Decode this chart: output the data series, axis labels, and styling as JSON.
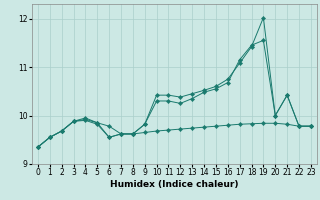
{
  "xlabel": "Humidex (Indice chaleur)",
  "bg_color": "#cce8e4",
  "grid_color": "#aacfcb",
  "line_color": "#1a7a6e",
  "xlim": [
    -0.5,
    23.5
  ],
  "ylim": [
    9.0,
    12.3
  ],
  "yticks": [
    9,
    10,
    11,
    12
  ],
  "xticks": [
    0,
    1,
    2,
    3,
    4,
    5,
    6,
    7,
    8,
    9,
    10,
    11,
    12,
    13,
    14,
    15,
    16,
    17,
    18,
    19,
    20,
    21,
    22,
    23
  ],
  "series": [
    [
      9.35,
      9.55,
      9.68,
      9.88,
      9.9,
      9.82,
      9.55,
      9.62,
      9.62,
      9.82,
      10.42,
      10.42,
      10.38,
      10.45,
      10.52,
      10.6,
      10.75,
      11.08,
      11.42,
      12.02,
      10.0,
      10.42,
      9.78,
      9.78
    ],
    [
      9.35,
      9.55,
      9.68,
      9.88,
      9.95,
      9.85,
      9.55,
      9.62,
      9.62,
      9.82,
      10.3,
      10.3,
      10.25,
      10.35,
      10.48,
      10.55,
      10.68,
      11.15,
      11.45,
      11.55,
      10.0,
      10.42,
      9.78,
      9.78
    ],
    [
      9.35,
      9.55,
      9.68,
      9.88,
      9.92,
      9.85,
      9.78,
      9.62,
      9.62,
      9.65,
      9.68,
      9.7,
      9.72,
      9.74,
      9.76,
      9.78,
      9.8,
      9.82,
      9.83,
      9.84,
      9.84,
      9.82,
      9.78,
      9.78
    ]
  ]
}
